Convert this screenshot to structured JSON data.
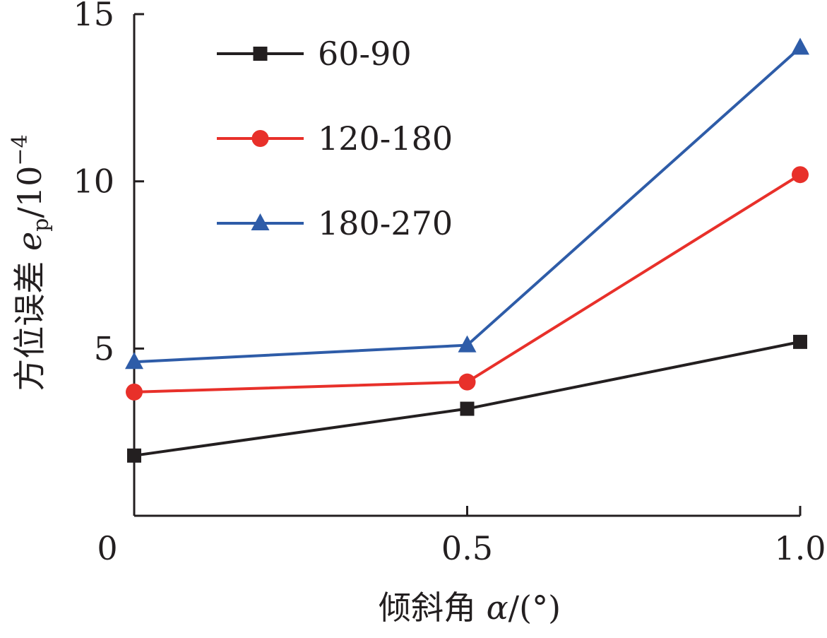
{
  "chart_data": {
    "type": "line",
    "x": [
      0,
      0.5,
      1.0
    ],
    "x_tick_labels": [
      "0",
      "0.5",
      "1.0"
    ],
    "y_tick_labels": [
      "5",
      "10",
      "15"
    ],
    "xlim": [
      0,
      1.0
    ],
    "ylim": [
      0,
      15
    ],
    "xlabel": {
      "main": "倾斜角 ",
      "symbol": "α",
      "unit": "/(°)"
    },
    "ylabel": {
      "main": "方位误差 ",
      "symbol": "e",
      "subscript": "p",
      "unit": "/10",
      "exponent": "−4"
    },
    "legend_position": "top-left",
    "grid": false,
    "series": [
      {
        "name": "60-90",
        "values": [
          1.8,
          3.2,
          5.2
        ],
        "color": "#231f20",
        "marker": "square"
      },
      {
        "name": "120-180",
        "values": [
          3.7,
          4.0,
          10.2
        ],
        "color": "#e8302a",
        "marker": "circle"
      },
      {
        "name": "180-270",
        "values": [
          4.6,
          5.1,
          14.0
        ],
        "color": "#2e5ca8",
        "marker": "triangle"
      }
    ]
  }
}
